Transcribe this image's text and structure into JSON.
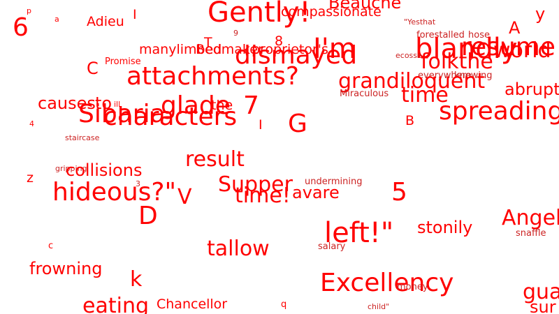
{
  "colors": {
    "background": "#ffffff",
    "text": "#ff0000",
    "text_small": "#cc2222"
  },
  "words": {
    "w_6": "6",
    "w_p": "p",
    "w_a": "a",
    "w_adieu": "Adieu",
    "w_I_top": "I",
    "w_gently": "Gently!",
    "w_beauche": "Beauche",
    "w_compassionate": "compassionate",
    "w_yesthat": "\"Yesthat",
    "w_y": "y",
    "w_A": "A",
    "w_forestalled": "forestalled",
    "w_hose": "hose",
    "w_9": "9",
    "w_8": "8",
    "w_T": "T",
    "w_manylimbed": "manylimbed",
    "w_bedmaker": "Bedmaker",
    "w_proprietors": "proprietor's",
    "w_im": "I'm",
    "w_dismayed": "dismayed",
    "w_blandly": "blandly",
    "w_resume": "resume",
    "w_ecosse": "ecosse",
    "w_world": "world",
    "w_C": "C",
    "w_promise": "Promise",
    "w_folkthe": "folkthe",
    "w_attachments": "attachments?",
    "w_everywhere": "everywhere",
    "w_knowing": "knowing",
    "w_grandiloquent": "grandiloquent",
    "w_time_top": "time",
    "w_abrupt": "abrupt",
    "w_miraculous": "Miraculous",
    "w_causes": "causes",
    "w_to": "to",
    "w_glade": "glade",
    "w_7": "7",
    "w_sibaria": "Sibaria",
    "w_characters": "characters",
    "w_the": "the",
    "w_ill": "ill",
    "w_G": "G",
    "w_spreading": "spreading",
    "w_B": "B",
    "w_4": "4",
    "w_I_mid": "I",
    "w_staircase": "staircase",
    "w_result": "result",
    "w_gripping": "gripping",
    "w_collisions": "collisions",
    "w_z": "z",
    "w_undermining": "undermining",
    "w_hideous": "hideous?\"",
    "w_3": "3",
    "w_V": "V",
    "w_supper": "Supper",
    "w_time_mid": "time!",
    "w_avare": "avare",
    "w_5": "5",
    "w_D": "D",
    "w_angel": "Angel",
    "w_snaffle": "snaffle",
    "w_left": "left!\"",
    "w_stonily": "stonily",
    "w_tallow": "tallow",
    "w_salary": "salary",
    "w_c": "c",
    "w_frowning": "frowning",
    "w_k": "k",
    "w_excellency": "Excellency",
    "w_money": "money",
    "w_guard": "gua",
    "w_eating": "eating",
    "w_chancellor": "Chancellor",
    "w_q": "q",
    "w_child": "child\"",
    "w_sur": "sur"
  }
}
